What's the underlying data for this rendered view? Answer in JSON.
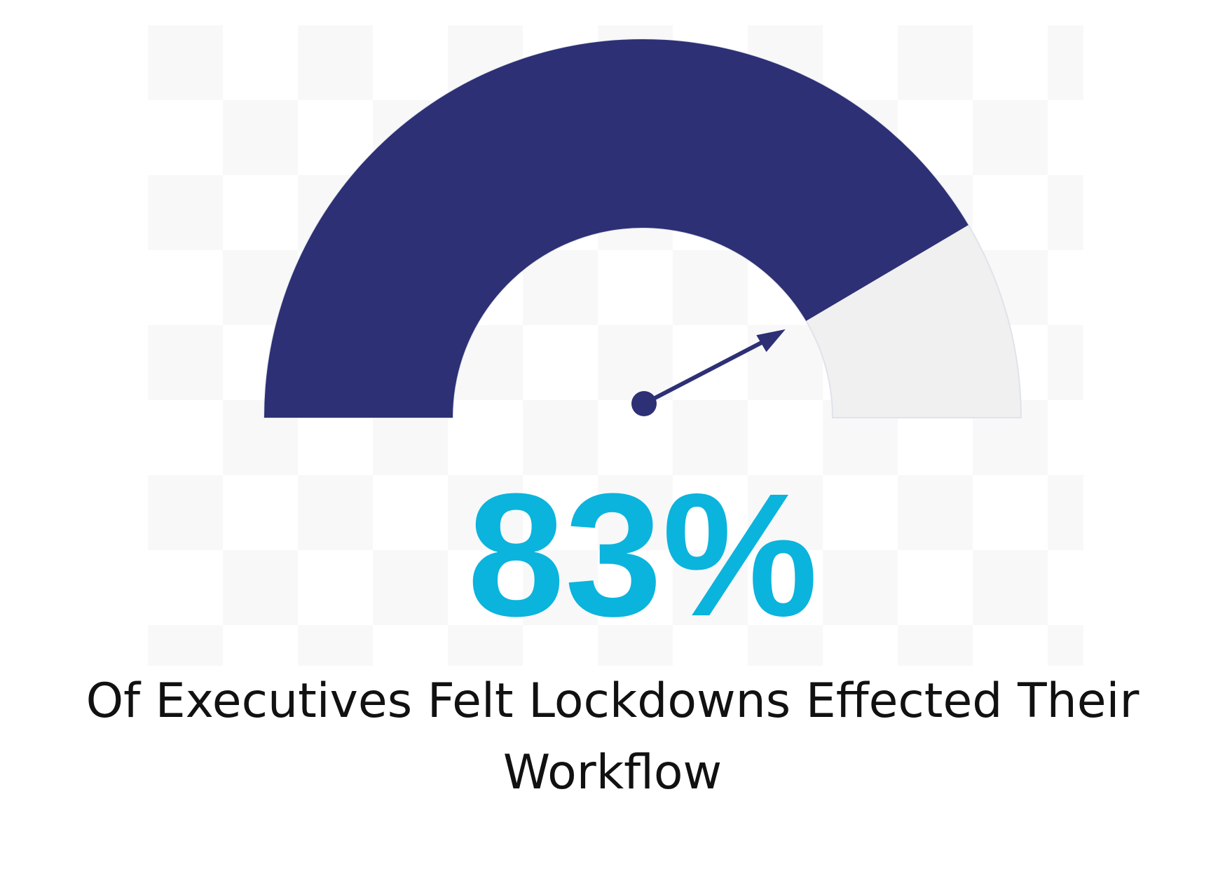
{
  "chart_data": {
    "type": "gauge",
    "title": "Of Executives Felt Lockdowns Effected Their Workflow",
    "values": [
      83
    ],
    "value_labels": [
      "83%"
    ],
    "ylim": [
      0,
      100
    ],
    "color": "#2d3075",
    "track_color": "#f0f0f0",
    "label_color": "#0ab4dd"
  }
}
